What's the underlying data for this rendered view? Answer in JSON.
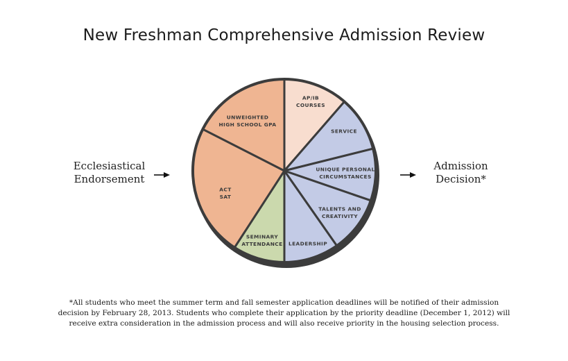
{
  "title": "New Freshman Comprehensive Admission Review",
  "left_label": {
    "line1": "Ecclesiastical",
    "line2": "Endorsement"
  },
  "right_label": {
    "line1": "Admission",
    "line2": "Decision*"
  },
  "colors": {
    "orange": "#efb592",
    "light_peach": "#f8ddcf",
    "blue": "#c3cbe6",
    "green": "#cbd9ad",
    "outline": "#3c3c3c"
  },
  "segments": [
    {
      "id": "ap-ib",
      "lines": [
        "AP/IB",
        "COURSES"
      ],
      "color": "#f8ddcf"
    },
    {
      "id": "service",
      "lines": [
        "SERVICE"
      ],
      "color": "#c3cbe6"
    },
    {
      "id": "unique",
      "lines": [
        "UNIQUE PERSONAL",
        "CIRCUMSTANCES"
      ],
      "color": "#c3cbe6"
    },
    {
      "id": "talents",
      "lines": [
        "TALENTS AND",
        "CREATIVITY"
      ],
      "color": "#c3cbe6"
    },
    {
      "id": "leadership",
      "lines": [
        "LEADERSHIP"
      ],
      "color": "#c3cbe6"
    },
    {
      "id": "seminary",
      "lines": [
        "SEMINARY",
        "ATTENDANCE"
      ],
      "color": "#cbd9ad"
    },
    {
      "id": "act-sat",
      "lines": [
        "ACT",
        "SAT"
      ],
      "color": "#efb592"
    },
    {
      "id": "gpa",
      "lines": [
        "UNWEIGHTED",
        "HIGH SCHOOL GPA"
      ],
      "color": "#efb592"
    }
  ],
  "footnote": {
    "line1": "*All students who meet the summer term and fall semester application deadlines will be notified of their admission",
    "line2": "decision by February 28, 2013. Students who complete their application by the priority deadline (December 1, 2012) will",
    "line3": "receive extra consideration in the admission process and will also receive priority in the housing selection process."
  }
}
